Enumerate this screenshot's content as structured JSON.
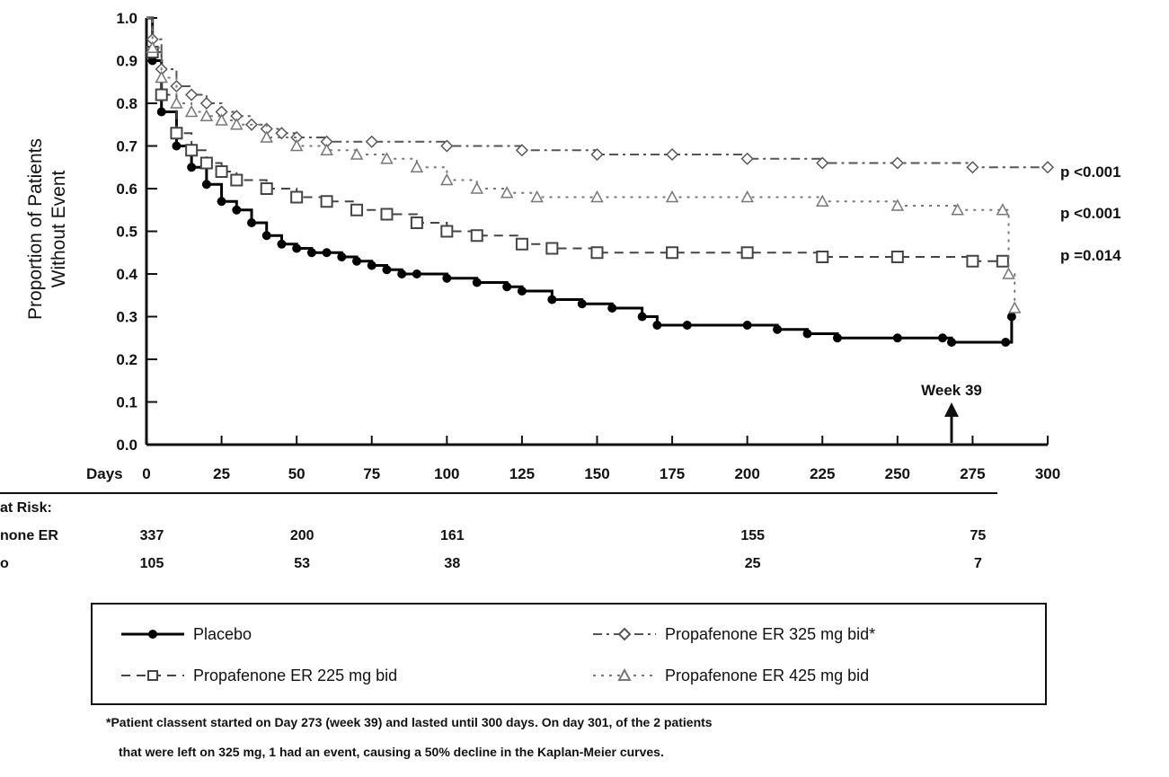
{
  "chart_data": {
    "type": "line",
    "title": "",
    "xlabel": "Days",
    "ylabel_lines": [
      "Proportion of Patients",
      "Without Event"
    ],
    "xlim": [
      0,
      300
    ],
    "ylim": [
      0.0,
      1.0
    ],
    "x_ticks": [
      "0",
      "25",
      "50",
      "75",
      "100",
      "125",
      "150",
      "175",
      "200",
      "225",
      "250",
      "275",
      "300"
    ],
    "y_ticks": [
      "0.0",
      "0.1",
      "0.2",
      "0.3",
      "0.4",
      "0.5",
      "0.6",
      "0.7",
      "0.8",
      "0.9",
      "1.0"
    ],
    "grid": false,
    "series": [
      {
        "name": "Placebo",
        "color": "#000000",
        "dash": "solid",
        "marker": "circle",
        "points": [
          [
            0,
            1.0
          ],
          [
            2,
            0.9
          ],
          [
            5,
            0.78
          ],
          [
            10,
            0.7
          ],
          [
            15,
            0.65
          ],
          [
            20,
            0.61
          ],
          [
            25,
            0.57
          ],
          [
            30,
            0.55
          ],
          [
            35,
            0.52
          ],
          [
            40,
            0.49
          ],
          [
            45,
            0.47
          ],
          [
            50,
            0.46
          ],
          [
            55,
            0.45
          ],
          [
            60,
            0.45
          ],
          [
            65,
            0.44
          ],
          [
            70,
            0.43
          ],
          [
            75,
            0.42
          ],
          [
            80,
            0.41
          ],
          [
            85,
            0.4
          ],
          [
            90,
            0.4
          ],
          [
            100,
            0.39
          ],
          [
            110,
            0.38
          ],
          [
            120,
            0.37
          ],
          [
            125,
            0.36
          ],
          [
            135,
            0.34
          ],
          [
            145,
            0.33
          ],
          [
            155,
            0.32
          ],
          [
            165,
            0.3
          ],
          [
            170,
            0.28
          ],
          [
            180,
            0.28
          ],
          [
            200,
            0.28
          ],
          [
            210,
            0.27
          ],
          [
            220,
            0.26
          ],
          [
            230,
            0.25
          ],
          [
            250,
            0.25
          ],
          [
            265,
            0.25
          ],
          [
            268,
            0.24
          ],
          [
            286,
            0.24
          ],
          [
            288,
            0.3
          ]
        ]
      },
      {
        "name": "Propafenone ER 225 mg bid",
        "color": "#444444",
        "dash": "dash",
        "marker": "square",
        "points": [
          [
            0,
            1.0
          ],
          [
            2,
            0.92
          ],
          [
            5,
            0.82
          ],
          [
            10,
            0.73
          ],
          [
            15,
            0.69
          ],
          [
            20,
            0.66
          ],
          [
            25,
            0.64
          ],
          [
            30,
            0.62
          ],
          [
            40,
            0.6
          ],
          [
            50,
            0.58
          ],
          [
            60,
            0.57
          ],
          [
            70,
            0.55
          ],
          [
            80,
            0.54
          ],
          [
            90,
            0.52
          ],
          [
            100,
            0.5
          ],
          [
            110,
            0.49
          ],
          [
            125,
            0.47
          ],
          [
            135,
            0.46
          ],
          [
            150,
            0.45
          ],
          [
            175,
            0.45
          ],
          [
            200,
            0.45
          ],
          [
            225,
            0.44
          ],
          [
            250,
            0.44
          ],
          [
            275,
            0.43
          ],
          [
            285,
            0.43
          ]
        ]
      },
      {
        "name": "Propafenone ER 325 mg bid*",
        "color": "#555555",
        "dash": "dashdot",
        "marker": "diamond",
        "points": [
          [
            0,
            1.0
          ],
          [
            2,
            0.95
          ],
          [
            5,
            0.88
          ],
          [
            10,
            0.84
          ],
          [
            15,
            0.82
          ],
          [
            20,
            0.8
          ],
          [
            25,
            0.78
          ],
          [
            30,
            0.77
          ],
          [
            35,
            0.75
          ],
          [
            40,
            0.74
          ],
          [
            45,
            0.73
          ],
          [
            50,
            0.72
          ],
          [
            60,
            0.71
          ],
          [
            75,
            0.71
          ],
          [
            100,
            0.7
          ],
          [
            125,
            0.69
          ],
          [
            150,
            0.68
          ],
          [
            175,
            0.68
          ],
          [
            200,
            0.67
          ],
          [
            225,
            0.66
          ],
          [
            250,
            0.66
          ],
          [
            275,
            0.65
          ],
          [
            300,
            0.65
          ]
        ]
      },
      {
        "name": "Propafenone ER 425 mg bid",
        "color": "#777777",
        "dash": "dot",
        "marker": "triangle",
        "points": [
          [
            0,
            1.0
          ],
          [
            2,
            0.93
          ],
          [
            5,
            0.86
          ],
          [
            10,
            0.8
          ],
          [
            15,
            0.78
          ],
          [
            20,
            0.77
          ],
          [
            25,
            0.76
          ],
          [
            30,
            0.75
          ],
          [
            40,
            0.72
          ],
          [
            50,
            0.7
          ],
          [
            60,
            0.69
          ],
          [
            70,
            0.68
          ],
          [
            80,
            0.67
          ],
          [
            90,
            0.65
          ],
          [
            100,
            0.62
          ],
          [
            110,
            0.6
          ],
          [
            120,
            0.59
          ],
          [
            130,
            0.58
          ],
          [
            150,
            0.58
          ],
          [
            175,
            0.58
          ],
          [
            200,
            0.58
          ],
          [
            225,
            0.57
          ],
          [
            250,
            0.56
          ],
          [
            270,
            0.55
          ],
          [
            285,
            0.55
          ],
          [
            287,
            0.4
          ],
          [
            289,
            0.32
          ]
        ]
      }
    ],
    "p_values": [
      "p <0.001",
      "p <0.001",
      "p =0.014"
    ],
    "annotation": "Week 39",
    "annotation_x": 268,
    "at_risk": {
      "header": "at Risk:",
      "rows": [
        {
          "label": "none ER",
          "values": [
            "337",
            "200",
            "161",
            "155",
            "75"
          ],
          "x": [
            0,
            50,
            100,
            200,
            275
          ]
        },
        {
          "label": "o",
          "values": [
            "105",
            "53",
            "38",
            "25",
            "7"
          ],
          "x": [
            0,
            50,
            100,
            200,
            275
          ]
        }
      ]
    },
    "legend": {
      "position": "bottom",
      "items": [
        "Placebo",
        "Propafenone ER 225 mg bid",
        "Propafenone ER 325 mg bid*",
        "Propafenone ER 425 mg bid"
      ]
    },
    "footnote": [
      "*Patient classent started on Day 273 (week 39) and lasted until 300 days. On day 301, of the 2 patients",
      "that were left on 325 mg, 1 had an event, causing a 50% decline in the Kaplan-Meier curves."
    ]
  }
}
